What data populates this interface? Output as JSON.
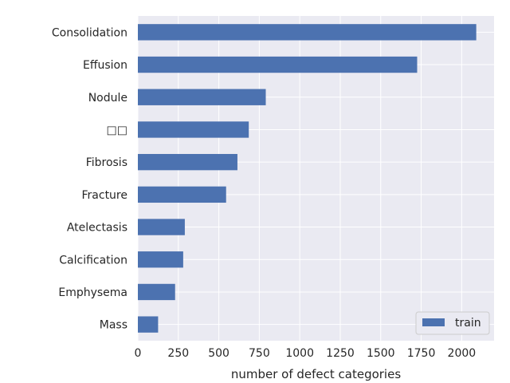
{
  "chart_data": {
    "type": "bar",
    "orientation": "horizontal",
    "categories": [
      "Mass",
      "Emphysema",
      "Calcification",
      "Atelectasis",
      "Fracture",
      "Fibrosis",
      "□□",
      "Nodule",
      "Effusion",
      "Consolidation"
    ],
    "series": [
      {
        "name": "train",
        "values": [
          125,
          230,
          280,
          290,
          545,
          615,
          685,
          790,
          1725,
          2090
        ],
        "color": "#4c72b0"
      }
    ],
    "xlabel": "number of defect categories",
    "ylabel": "",
    "xlim": [
      0,
      2200
    ],
    "xticks": [
      0,
      250,
      500,
      750,
      1000,
      1250,
      1500,
      1750,
      2000
    ],
    "xtick_labels": [
      "0",
      "250",
      "500",
      "750",
      "1000",
      "1250",
      "1500",
      "1750",
      "2000"
    ],
    "grid": true,
    "legend_position": "lower-right",
    "colors": {
      "background": "#eaeaf2",
      "grid": "#ffffff",
      "bar": "#4c72b0"
    }
  }
}
